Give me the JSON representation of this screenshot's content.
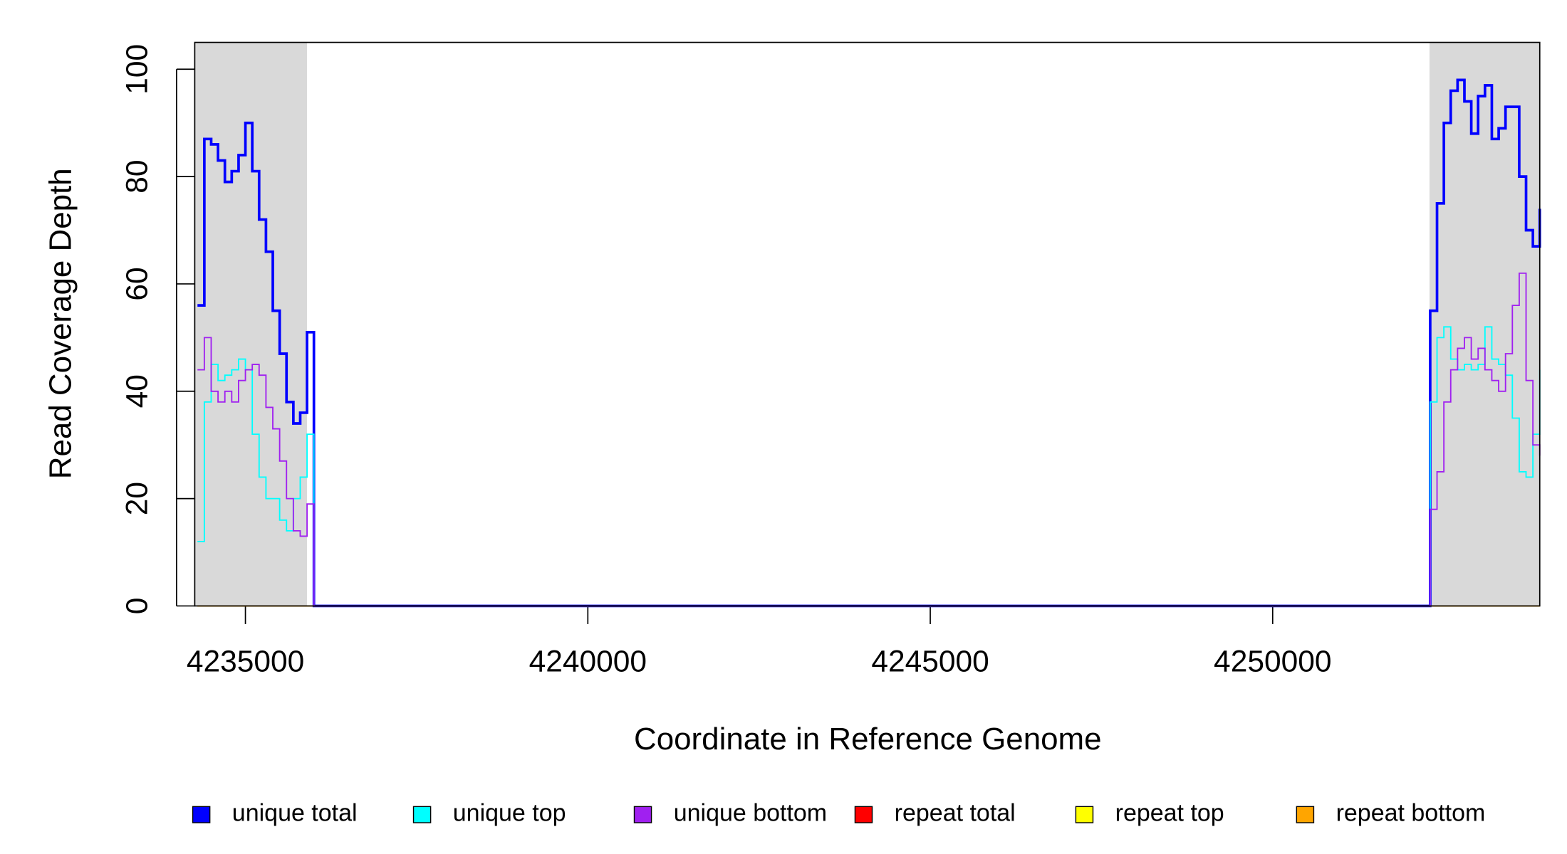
{
  "chart_data": {
    "type": "line",
    "step": true,
    "x_label": "Coordinate in Reference Genome",
    "y_label": "Read Coverage Depth",
    "xlim": [
      4234260,
      4253900
    ],
    "ylim": [
      0,
      105
    ],
    "xticks": [
      4235000,
      4240000,
      4245000,
      4250000
    ],
    "yticks": [
      0,
      20,
      40,
      60,
      80,
      100
    ],
    "grid": false,
    "legend": "bottom",
    "shade_color": "#d9d9d9",
    "shaded_regions": [
      [
        4234260,
        4235900
      ],
      [
        4252290,
        4253900
      ]
    ],
    "x": [
      4234300,
      4234400,
      4234500,
      4234600,
      4234700,
      4234800,
      4234900,
      4235000,
      4235100,
      4235200,
      4235300,
      4235400,
      4235500,
      4235600,
      4235700,
      4235800,
      4235900,
      4236000,
      4252200,
      4252300,
      4252400,
      4252500,
      4252600,
      4252700,
      4252800,
      4252900,
      4253000,
      4253100,
      4253200,
      4253300,
      4253400,
      4253500,
      4253600,
      4253700,
      4253800,
      4253900
    ],
    "series": [
      {
        "name": "unique total",
        "color": "#0000ff",
        "values": [
          56,
          87,
          86,
          83,
          79,
          81,
          84,
          90,
          81,
          72,
          66,
          55,
          47,
          38,
          34,
          36,
          51,
          0,
          0,
          55,
          75,
          90,
          96,
          98,
          94,
          88,
          95,
          97,
          87,
          89,
          93,
          93,
          80,
          70,
          67,
          74
        ]
      },
      {
        "name": "unique top",
        "color": "#00ffff",
        "values": [
          12,
          38,
          45,
          42,
          43,
          44,
          46,
          44,
          32,
          24,
          20,
          20,
          16,
          14,
          20,
          24,
          32,
          0,
          0,
          38,
          50,
          52,
          46,
          44,
          45,
          44,
          45,
          52,
          46,
          45,
          43,
          35,
          25,
          24,
          32,
          44
        ]
      },
      {
        "name": "unique bottom",
        "color": "#a020f0",
        "values": [
          44,
          50,
          40,
          38,
          40,
          38,
          42,
          44,
          45,
          43,
          37,
          33,
          27,
          20,
          14,
          13,
          19,
          0,
          0,
          18,
          25,
          38,
          44,
          48,
          50,
          46,
          48,
          44,
          42,
          40,
          47,
          56,
          62,
          42,
          30,
          28
        ]
      },
      {
        "name": "repeat total",
        "color": "#ff0000",
        "values": [
          0,
          0,
          0,
          0,
          0,
          0,
          0,
          0,
          0,
          0,
          0,
          0,
          0,
          0,
          0,
          0,
          0,
          0,
          0,
          0,
          0,
          0,
          0,
          0,
          0,
          0,
          0,
          0,
          0,
          0,
          0,
          0,
          0,
          0,
          0,
          0
        ]
      },
      {
        "name": "repeat top",
        "color": "#ffff00",
        "values": [
          0,
          0,
          0,
          0,
          0,
          0,
          0,
          0,
          0,
          0,
          0,
          0,
          0,
          0,
          0,
          0,
          0,
          0,
          0,
          0,
          0,
          0,
          0,
          0,
          0,
          0,
          0,
          0,
          0,
          0,
          0,
          0,
          0,
          0,
          0,
          0
        ]
      },
      {
        "name": "repeat bottom",
        "color": "#ffa500",
        "values": [
          0,
          0,
          0,
          0,
          0,
          0,
          0,
          0,
          0,
          0,
          0,
          0,
          0,
          0,
          0,
          0,
          0,
          0,
          0,
          0,
          0,
          0,
          0,
          0,
          0,
          0,
          0,
          0,
          0,
          0,
          0,
          0,
          0,
          0,
          0,
          0
        ]
      }
    ]
  }
}
